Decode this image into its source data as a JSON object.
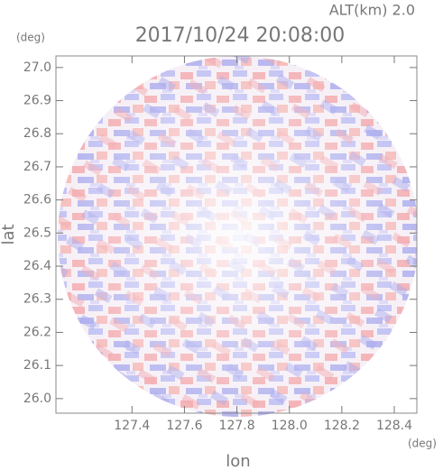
{
  "chart_data": {
    "type": "ppi",
    "subtitle": "ALT(km) 2.0",
    "title": "2017/10/24 20:08:00",
    "xlabel": "lon",
    "ylabel": "lat",
    "x_unit": "(deg)",
    "y_unit": "(deg)",
    "xlim": [
      127.11,
      128.486
    ],
    "ylim": [
      25.956,
      27.035
    ],
    "xticks": [
      127.4,
      127.6,
      127.8,
      {
        "value": 128,
        "label": "128.0"
      },
      128.2,
      128.4
    ],
    "yticks": [
      {
        "value": 26,
        "label": "26.0"
      },
      26.1,
      26.2,
      26.3,
      26.4,
      26.5,
      26.6,
      26.7,
      26.8,
      26.9,
      {
        "value": 27,
        "label": "27.0"
      }
    ]
  }
}
